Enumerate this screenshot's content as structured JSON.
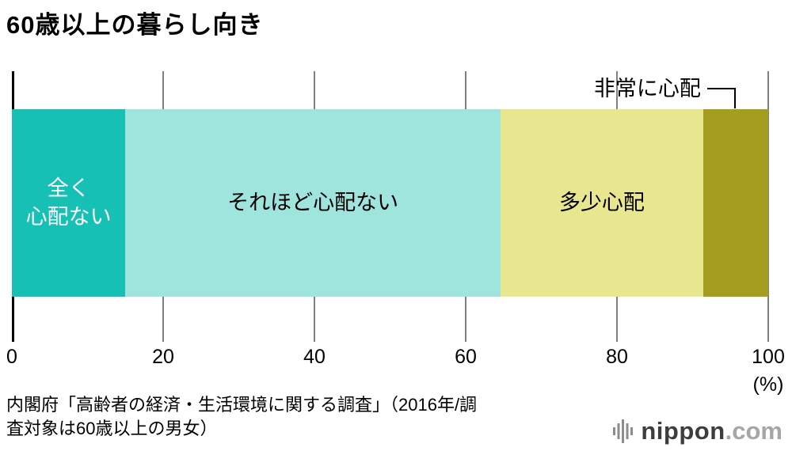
{
  "title": "60歳以上の暮らし向き",
  "chart_data": {
    "type": "bar",
    "orientation": "horizontal-stacked",
    "title": "60歳以上の暮らし向き",
    "xlim": [
      0,
      100
    ],
    "x_ticks": [
      0,
      20,
      40,
      60,
      80,
      100
    ],
    "unit_label": "(%)",
    "grid": "vertical-ticks",
    "callout_label": "非常に心配",
    "segments": [
      {
        "label": "全く\n心配ない",
        "value": 15.0,
        "color": "#16c0b5",
        "text_color": "#ffffff",
        "label_outside": false
      },
      {
        "label": "それほど心配ない",
        "value": 49.6,
        "color": "#9fe5de",
        "text_color": "#000000",
        "label_outside": false
      },
      {
        "label": "多少心配",
        "value": 26.8,
        "color": "#e8e68f",
        "text_color": "#000000",
        "label_outside": false
      },
      {
        "label": "非常に心配",
        "value": 8.6,
        "color": "#a59d1f",
        "text_color": "#000000",
        "label_outside": true
      }
    ]
  },
  "source": {
    "line1": "内閣府「高齢者の経済・生活環境に関する調査」（2016年/調",
    "line2": "査対象は60歳以上の男女）"
  },
  "logo": {
    "name": "nippon",
    "tld": ".com",
    "icon": "nippon-logo-bars-icon"
  }
}
